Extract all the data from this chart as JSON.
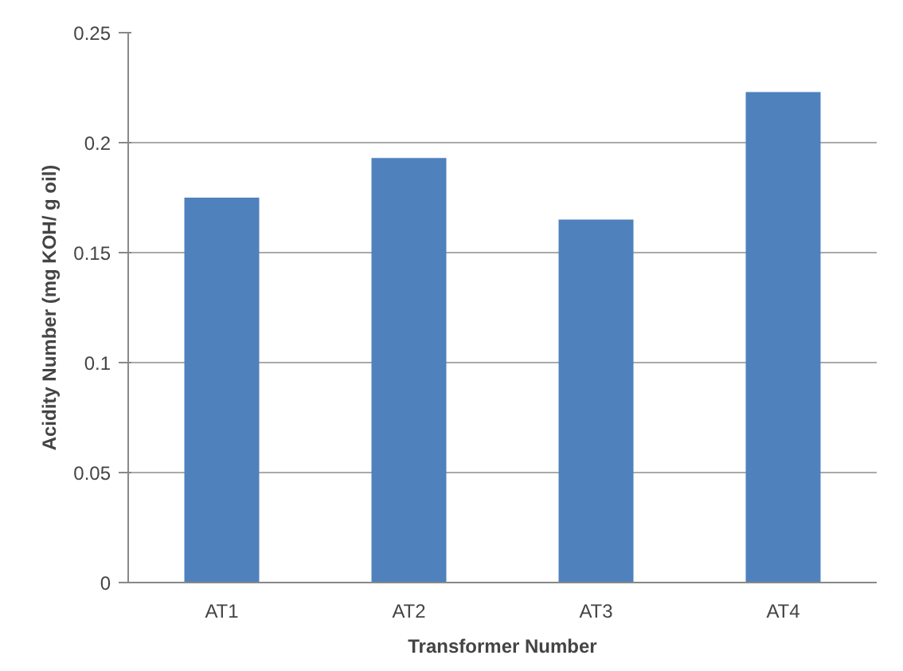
{
  "chart_data": {
    "type": "bar",
    "xlabel": "Transformer Number",
    "ylabel": "Acidity Number (mg KOH/ g oil)",
    "categories": [
      "AT1",
      "AT2",
      "AT3",
      "AT4"
    ],
    "values": [
      0.175,
      0.193,
      0.165,
      0.223
    ],
    "color": "#4f81bd",
    "ylim": [
      0,
      0.25
    ],
    "yticks": [
      0,
      0.05,
      0.1,
      0.15,
      0.2,
      0.25
    ],
    "grid": "y"
  }
}
